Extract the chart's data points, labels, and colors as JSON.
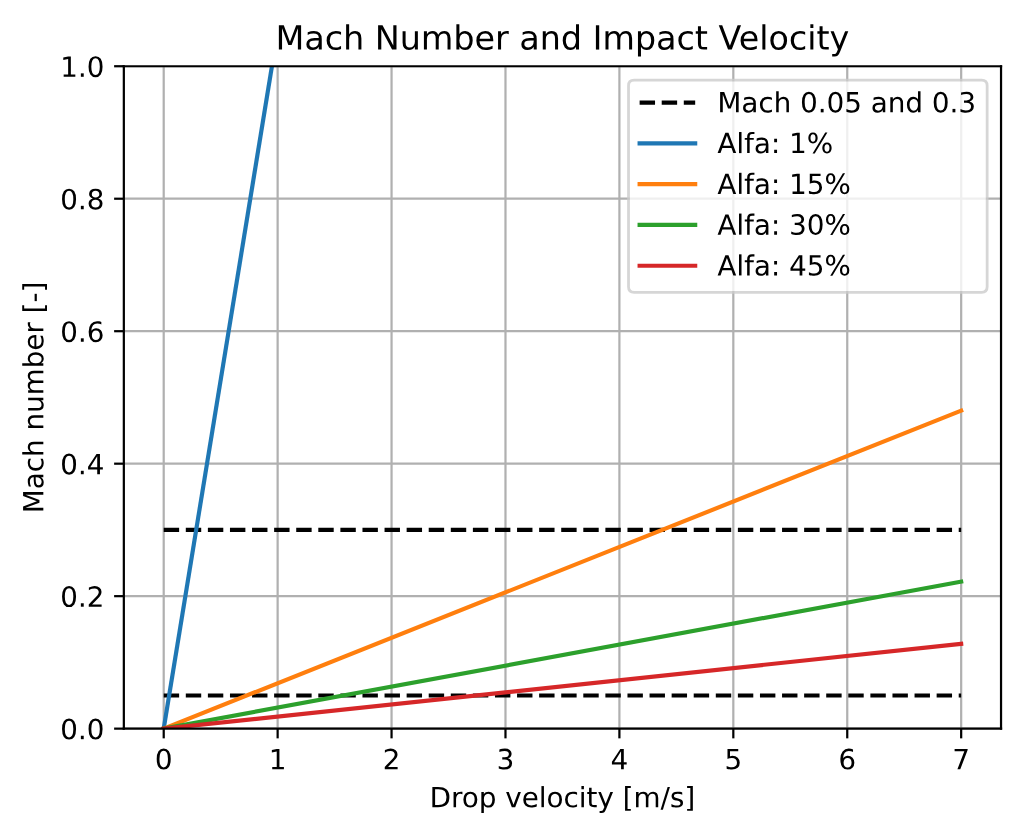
{
  "chart_data": {
    "type": "line",
    "title": "Mach Number and Impact Velocity",
    "xlabel": "Drop velocity [m/s]",
    "ylabel": "Mach number [-]",
    "series": [
      {
        "name": "Mach 0.05 and 0.3",
        "color": "#000000",
        "line_style": "dashed",
        "x": [
          0,
          7
        ],
        "values": [
          0.05,
          0.05
        ]
      },
      {
        "color": "#000000",
        "line_style": "dashed",
        "x": [
          0,
          7
        ],
        "values": [
          0.3,
          0.3
        ]
      },
      {
        "name": "Alfa: 1%",
        "color": "#1f77b4",
        "x": [
          0,
          0.95
        ],
        "values": [
          0,
          1.0
        ]
      },
      {
        "name": "Alfa: 15%",
        "color": "#ff7f0e",
        "x": [
          0,
          7
        ],
        "values": [
          0,
          0.48
        ]
      },
      {
        "name": "Alfa: 30%",
        "color": "#2ca02c",
        "x": [
          0,
          7
        ],
        "values": [
          0,
          0.222
        ]
      },
      {
        "name": "Alfa: 45%",
        "color": "#d62728",
        "x": [
          0,
          7
        ],
        "values": [
          0,
          0.128
        ]
      }
    ],
    "xlim": [
      -0.35,
      7.35
    ],
    "xticks": [
      0,
      1,
      2,
      3,
      4,
      5,
      6,
      7
    ],
    "ylim": [
      0,
      1.0
    ],
    "yticks": [
      {
        "value": 0,
        "label": "0.0"
      },
      0.2,
      0.4,
      0.6,
      0.8,
      {
        "value": 1,
        "label": "1.0"
      }
    ],
    "grid": true,
    "legend": "top right"
  }
}
